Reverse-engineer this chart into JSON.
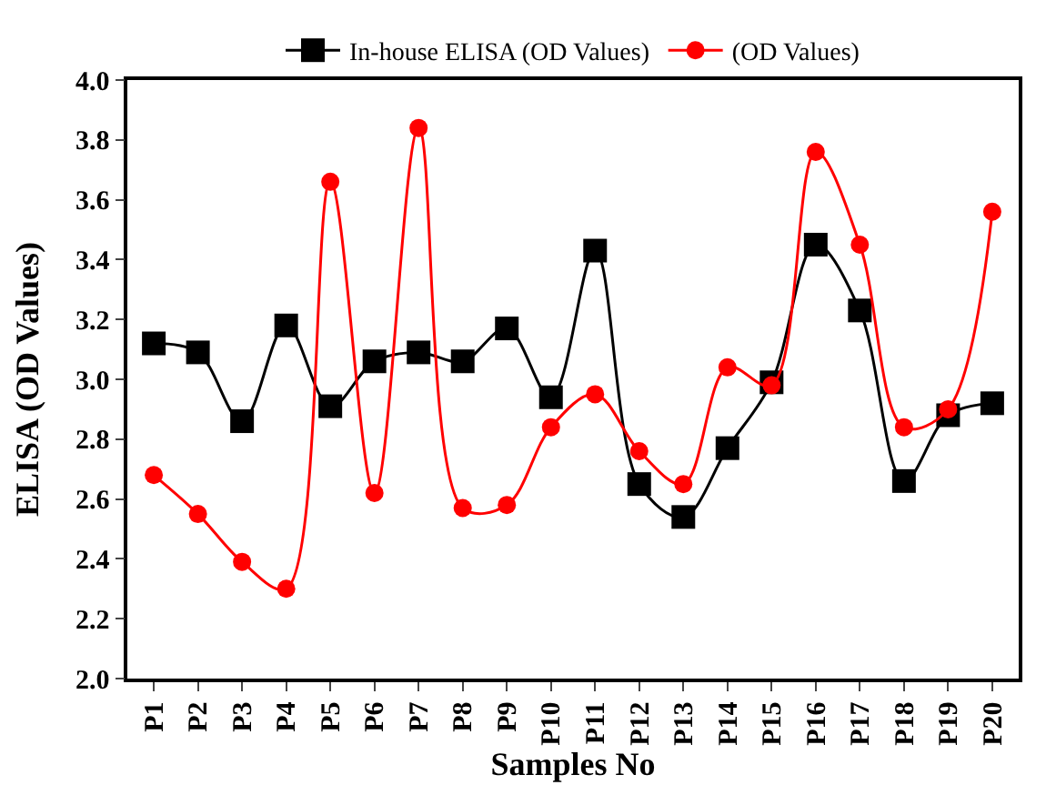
{
  "chart_data": {
    "type": "line",
    "xlabel": "Samples No",
    "ylabel": "ELISA (OD Values)",
    "categories": [
      "P1",
      "P2",
      "P3",
      "P4",
      "P5",
      "P6",
      "P7",
      "P8",
      "P9",
      "P10",
      "P11",
      "P12",
      "P13",
      "P14",
      "P15",
      "P16",
      "P17",
      "P18",
      "P19",
      "P20"
    ],
    "series": [
      {
        "name": "In-house ELISA (OD Values)",
        "color": "#000000",
        "marker": "square",
        "values": [
          3.12,
          3.09,
          2.86,
          3.18,
          2.91,
          3.06,
          3.09,
          3.06,
          3.17,
          2.94,
          3.43,
          2.65,
          2.54,
          2.77,
          2.99,
          3.45,
          3.23,
          2.66,
          2.88,
          2.92
        ]
      },
      {
        "name": "(OD Values)",
        "color": "#ff0000",
        "marker": "circle",
        "values": [
          2.68,
          2.55,
          2.39,
          2.3,
          3.66,
          2.62,
          3.84,
          2.57,
          2.58,
          2.84,
          2.95,
          2.76,
          2.65,
          3.04,
          2.98,
          3.76,
          3.45,
          2.84,
          2.9,
          3.56
        ]
      }
    ],
    "ylim": [
      2.0,
      4.0
    ],
    "yticks": [
      {
        "value": 2.0,
        "label": "2.0"
      },
      {
        "value": 2.2,
        "label": "2.2"
      },
      {
        "value": 2.4,
        "label": "2.4"
      },
      {
        "value": 2.6,
        "label": "2.6"
      },
      {
        "value": 2.8,
        "label": "2.8"
      },
      {
        "value": 3.0,
        "label": "3.0"
      },
      {
        "value": 3.2,
        "label": "3.2"
      },
      {
        "value": 3.4,
        "label": "3.4"
      },
      {
        "value": 3.6,
        "label": "3.6"
      },
      {
        "value": 3.8,
        "label": "3.8"
      },
      {
        "value": 4.0,
        "label": "4.0"
      }
    ],
    "legend": "top",
    "line_style": "solid"
  }
}
